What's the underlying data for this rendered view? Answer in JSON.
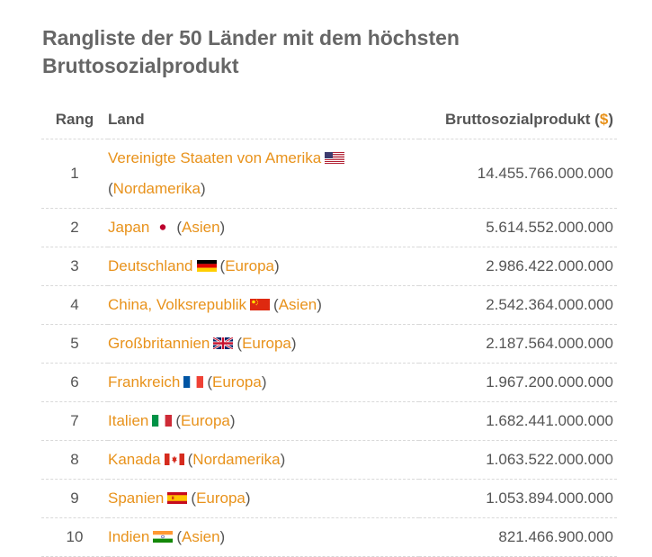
{
  "title": "Rangliste der 50 Länder mit dem höchsten Bruttosozialprodukt",
  "table": {
    "headers": {
      "rank": "Rang",
      "country": "Land",
      "gnp_prefix": "Bruttosozialprodukt (",
      "gnp_currency": "$",
      "gnp_suffix": ")"
    },
    "rows": [
      {
        "rank": "1",
        "country": "Vereinigte Staaten von Amerika",
        "flag": "us-flag-icon",
        "continent": "Nordamerika",
        "gnp": "14.455.766.000.000"
      },
      {
        "rank": "2",
        "country": "Japan",
        "flag": "jp-flag-icon",
        "continent": "Asien",
        "gnp": "5.614.552.000.000"
      },
      {
        "rank": "3",
        "country": "Deutschland",
        "flag": "de-flag-icon",
        "continent": "Europa",
        "gnp": "2.986.422.000.000"
      },
      {
        "rank": "4",
        "country": "China, Volksrepublik",
        "flag": "cn-flag-icon",
        "continent": "Asien",
        "gnp": "2.542.364.000.000"
      },
      {
        "rank": "5",
        "country": "Großbritannien",
        "flag": "gb-flag-icon",
        "continent": "Europa",
        "gnp": "2.187.564.000.000"
      },
      {
        "rank": "6",
        "country": "Frankreich",
        "flag": "fr-flag-icon",
        "continent": "Europa",
        "gnp": "1.967.200.000.000"
      },
      {
        "rank": "7",
        "country": "Italien",
        "flag": "it-flag-icon",
        "continent": "Europa",
        "gnp": "1.682.441.000.000"
      },
      {
        "rank": "8",
        "country": "Kanada",
        "flag": "ca-flag-icon",
        "continent": "Nordamerika",
        "gnp": "1.063.522.000.000"
      },
      {
        "rank": "9",
        "country": "Spanien",
        "flag": "es-flag-icon",
        "continent": "Europa",
        "gnp": "1.053.894.000.000"
      },
      {
        "rank": "10",
        "country": "Indien",
        "flag": "in-flag-icon",
        "continent": "Asien",
        "gnp": "821.466.900.000"
      }
    ]
  },
  "colors": {
    "link": "#e8921b",
    "text": "#555555",
    "title": "#666666",
    "divider": "#d9d9d9"
  }
}
